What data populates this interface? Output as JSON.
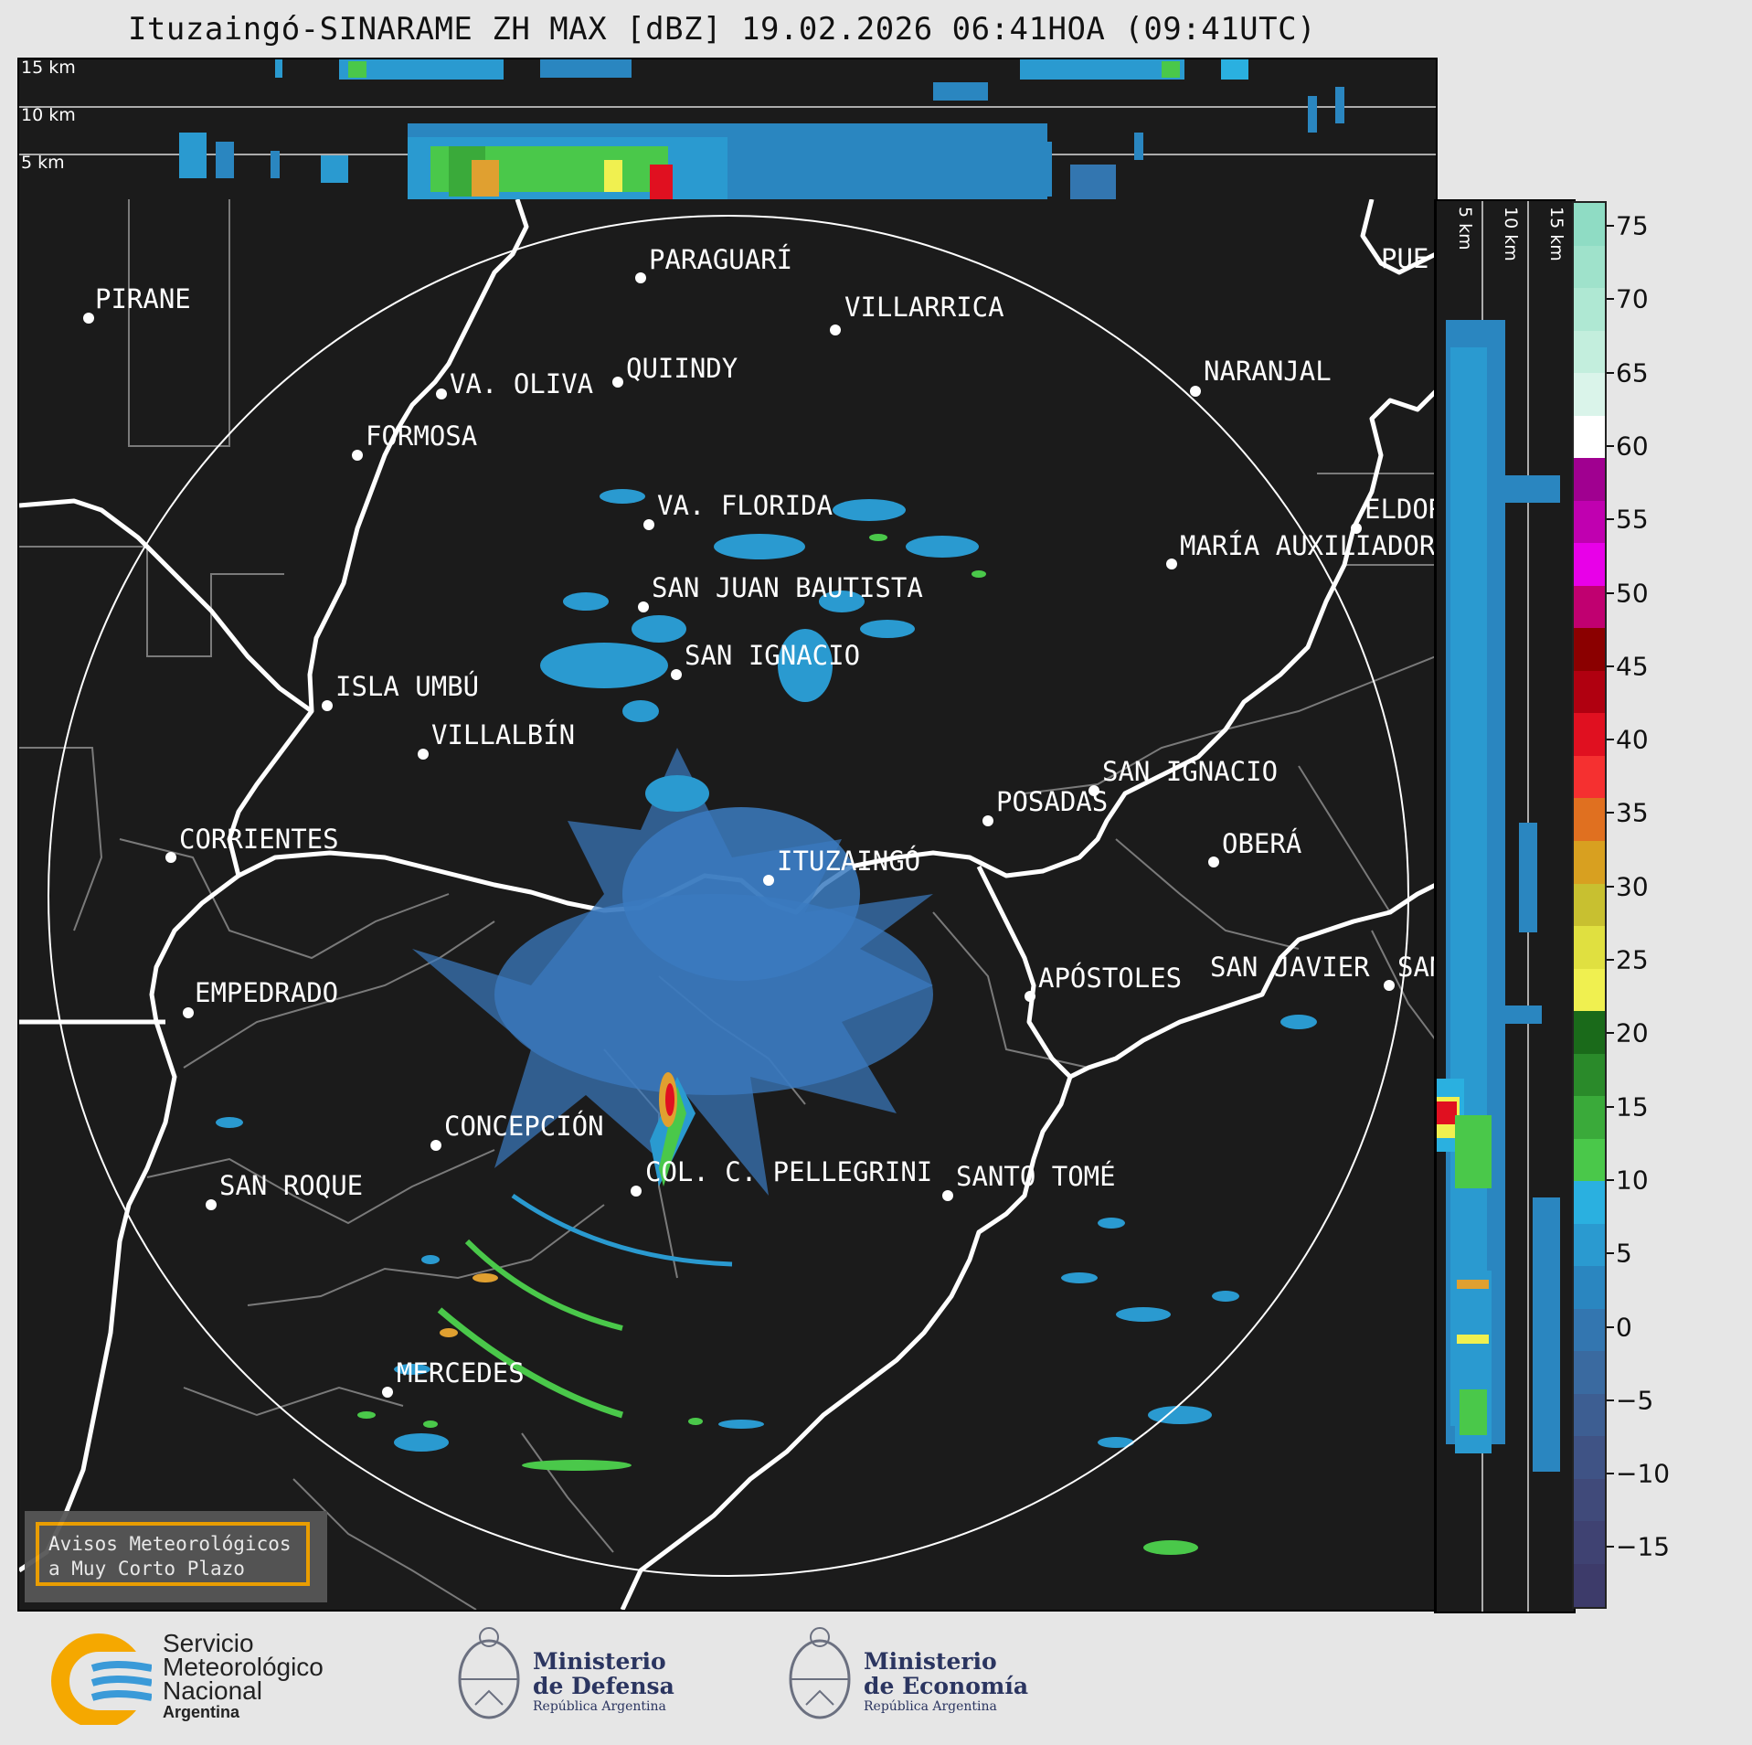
{
  "title": "Ituzaingó-SINARAME ZH MAX [dBZ] 19.02.2026 06:41HOA (09:41UTC)",
  "top_panel": {
    "height_labels": [
      "15 km",
      "10 km",
      "5 km"
    ]
  },
  "side_panel": {
    "height_labels": [
      "5 km",
      "10 km",
      "15 km"
    ]
  },
  "map": {
    "places": [
      {
        "id": "pirane",
        "name": "PIRANE"
      },
      {
        "id": "paraguari",
        "name": "PARAGUARÍ"
      },
      {
        "id": "villarrica",
        "name": "VILLARRICA"
      },
      {
        "id": "quiindy",
        "name": "QUIINDY"
      },
      {
        "id": "va-oliva",
        "name": "VA. OLIVA"
      },
      {
        "id": "formosa",
        "name": "FORMOSA"
      },
      {
        "id": "naranjal",
        "name": "NARANJAL"
      },
      {
        "id": "va-florida",
        "name": "VA. FLORIDA"
      },
      {
        "id": "eldorado",
        "name": "ELDOR"
      },
      {
        "id": "maria-auxiliadora",
        "name": "MARÍA AUXILIADOR"
      },
      {
        "id": "san-juan-bautista",
        "name": "SAN JUAN BAUTISTA"
      },
      {
        "id": "san-ignacio-py",
        "name": "SAN IGNACIO"
      },
      {
        "id": "isla-umbu",
        "name": "ISLA UMBÚ"
      },
      {
        "id": "villalbin",
        "name": "VILLALBÍN"
      },
      {
        "id": "san-ignacio-ar",
        "name": "SAN IGNACIO"
      },
      {
        "id": "posadas",
        "name": "POSADAS"
      },
      {
        "id": "corrientes",
        "name": "CORRIENTES"
      },
      {
        "id": "ituzaingo",
        "name": "ITUZAINGÓ"
      },
      {
        "id": "obera",
        "name": "OBERÁ"
      },
      {
        "id": "empedrado",
        "name": "EMPEDRADO"
      },
      {
        "id": "apostoles",
        "name": "APÓSTOLES"
      },
      {
        "id": "san-javier",
        "name": "SAN JAVIER"
      },
      {
        "id": "san-x",
        "name": "SAN"
      },
      {
        "id": "puerto",
        "name": "PUE"
      },
      {
        "id": "concepcion",
        "name": "CONCEPCIÓN"
      },
      {
        "id": "col-pellegrini",
        "name": "COL. C. PELLEGRINI"
      },
      {
        "id": "santo-tome",
        "name": "SANTO TOMÉ"
      },
      {
        "id": "san-roque",
        "name": "SAN ROQUE"
      },
      {
        "id": "mercedes",
        "name": "MERCEDES"
      }
    ]
  },
  "colorbar": {
    "unit": "dBZ",
    "tick_labels": [
      "75",
      "70",
      "65",
      "60",
      "55",
      "50",
      "45",
      "40",
      "35",
      "30",
      "25",
      "20",
      "15",
      "10",
      "5",
      "0",
      "−5",
      "−10",
      "−15"
    ],
    "colors": [
      "#8fdcc4",
      "#9fe2cb",
      "#afe8d3",
      "#c3eedd",
      "#daf4ea",
      "#ffffff",
      "#a00090",
      "#c000b0",
      "#e800e8",
      "#c00070",
      "#8b0000",
      "#b00010",
      "#e01020",
      "#f53030",
      "#e07020",
      "#d8a020",
      "#c8c030",
      "#e0e040",
      "#f0f050",
      "#1a6a1a",
      "#2a8a2a",
      "#3aaa3a",
      "#4ac84a",
      "#2ab0e0",
      "#2a9ad0",
      "#2a86c0",
      "#3376b0",
      "#3a6aa0",
      "#3d5e92",
      "#3f5385",
      "#404a7a",
      "#3f4272",
      "#3d3b6a"
    ]
  },
  "banner": {
    "line1": "Avisos Meteorológicos",
    "line2": "a Muy Corto Plazo"
  },
  "footer": {
    "smn": {
      "line1": "Servicio",
      "line2": "Meteorológico",
      "line3": "Nacional",
      "line4": "Argentina"
    },
    "defensa": {
      "line1": "Ministerio",
      "line2": "de Defensa",
      "line3": "República Argentina"
    },
    "economia": {
      "line1": "Ministerio",
      "line2": "de Economía",
      "line3": "República Argentina"
    }
  }
}
